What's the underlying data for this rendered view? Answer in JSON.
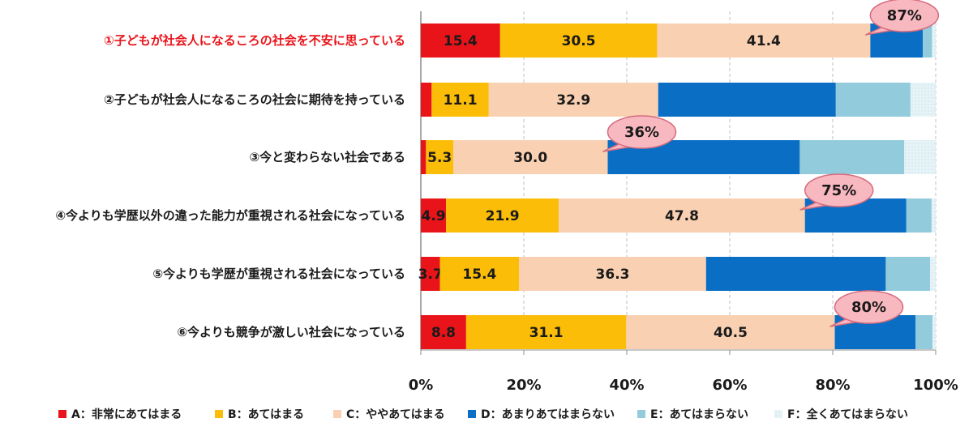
{
  "chart_data": {
    "type": "bar",
    "orientation": "horizontal",
    "stacked": true,
    "xlim": [
      0,
      100
    ],
    "x_ticks": [
      "0%",
      "20%",
      "40%",
      "60%",
      "80%",
      "100%"
    ],
    "grid": "vertical-dashed",
    "legend_position": "bottom",
    "categories": [
      "①子どもが社会人になるころの社会を不安に思っている",
      "②子どもが社会人になるころの社会に期待を持っている",
      "③今と変わらない社会である",
      "④今よりも学歴以外の違った能力が重視される社会になっている",
      "⑤今よりも学歴が重視される社会になっている",
      "⑥今よりも競争が激しい社会になっている"
    ],
    "highlight_category_index": 0,
    "highlight_color": "#e8141a",
    "series": [
      {
        "name": "A：非常にあてはまる",
        "color": "#e8141a",
        "values": [
          15.4,
          2.1,
          1.0,
          4.9,
          3.7,
          8.8
        ]
      },
      {
        "name": "B：あてはまる",
        "color": "#fbbd07",
        "values": [
          30.5,
          11.1,
          5.3,
          21.9,
          15.4,
          31.1
        ]
      },
      {
        "name": "C：ややあてはまる",
        "color": "#f9d1b2",
        "values": [
          41.4,
          32.9,
          30.0,
          47.8,
          36.3,
          40.5
        ]
      },
      {
        "name": "D：あまりあてはまらない",
        "color": "#0a6fc4",
        "values": [
          10.2,
          34.5,
          37.3,
          19.7,
          34.9,
          15.7
        ]
      },
      {
        "name": "E：あてはまらない",
        "color": "#92cbdc",
        "values": [
          1.8,
          14.5,
          20.3,
          4.9,
          8.6,
          3.3
        ]
      },
      {
        "name": "F：全くあてはまらない",
        "color": "#daeef3",
        "values": [
          0.7,
          4.9,
          6.1,
          0.8,
          1.1,
          0.6
        ]
      }
    ],
    "data_labels": [
      [
        "15.4",
        "30.5",
        "41.4",
        "",
        "",
        ""
      ],
      [
        "",
        "11.1",
        "32.9",
        "",
        "",
        ""
      ],
      [
        "",
        "5.3",
        "30.0",
        "",
        "",
        ""
      ],
      [
        "4.9",
        "21.9",
        "47.8",
        "",
        "",
        ""
      ],
      [
        "3.7",
        "15.4",
        "36.3",
        "",
        "",
        ""
      ],
      [
        "8.8",
        "31.1",
        "40.5",
        "",
        "",
        ""
      ]
    ],
    "callouts": [
      {
        "category_index": 0,
        "at_value": 87.3,
        "text": "87%"
      },
      {
        "category_index": 2,
        "at_value": 36.3,
        "text": "36%"
      },
      {
        "category_index": 3,
        "at_value": 74.6,
        "text": "75%"
      },
      {
        "category_index": 5,
        "at_value": 80.4,
        "text": "80%"
      }
    ],
    "callout_color": "#f8b8c0"
  }
}
